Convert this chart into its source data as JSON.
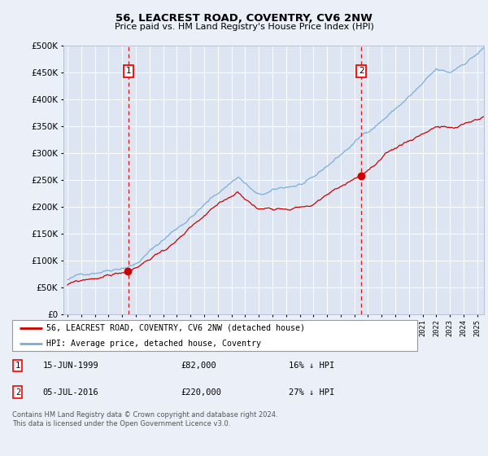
{
  "title": "56, LEACREST ROAD, COVENTRY, CV6 2NW",
  "subtitle": "Price paid vs. HM Land Registry's House Price Index (HPI)",
  "background_color": "#eaeff8",
  "plot_bg_color": "#dde5f3",
  "sale1_x": 1999.46,
  "sale1_price": 82000,
  "sale2_x": 2016.51,
  "sale2_price": 220000,
  "legend_entry1": "56, LEACREST ROAD, COVENTRY, CV6 2NW (detached house)",
  "legend_entry2": "HPI: Average price, detached house, Coventry",
  "footer": "Contains HM Land Registry data © Crown copyright and database right 2024.\nThis data is licensed under the Open Government Licence v3.0.",
  "ylim": [
    0,
    500000
  ],
  "xlim_start": 1994.7,
  "xlim_end": 2025.5,
  "hpi_color": "#7aaed6",
  "prop_color": "#cc0000",
  "vline_color": "#dd0000",
  "grid_color": "#c8d4e8"
}
